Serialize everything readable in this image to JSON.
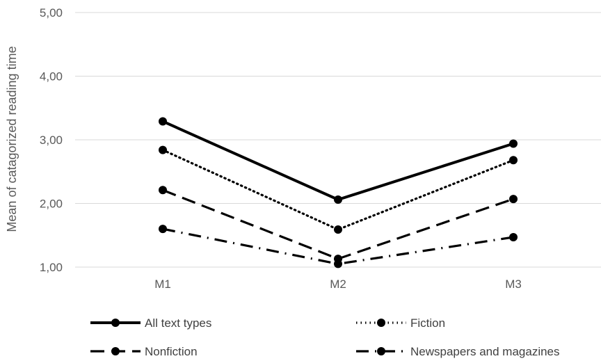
{
  "chart_data": {
    "type": "line",
    "categories": [
      "M1",
      "M2",
      "M3"
    ],
    "series": [
      {
        "name": "All text types",
        "values": [
          3.29,
          2.06,
          2.94
        ],
        "style": "solid"
      },
      {
        "name": "Fiction",
        "values": [
          2.84,
          1.59,
          2.68
        ],
        "style": "dotted"
      },
      {
        "name": "Nonfiction",
        "values": [
          2.21,
          1.13,
          2.07
        ],
        "style": "dashed"
      },
      {
        "name": "Newspapers and magazines",
        "values": [
          1.6,
          1.05,
          1.47
        ],
        "style": "dashdot"
      }
    ],
    "title": "",
    "xlabel": "",
    "ylabel": "Mean of catagorized reading time",
    "ylim": [
      1,
      5
    ],
    "yticks": [
      "1,00",
      "2,00",
      "3,00",
      "4,00",
      "5,00"
    ],
    "grid": "horizontal",
    "legend_position": "bottom",
    "line_color": "#000000",
    "grid_color": "#d9d9d9"
  }
}
